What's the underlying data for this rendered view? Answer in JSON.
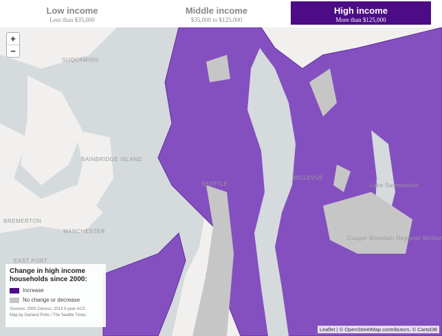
{
  "tabs": [
    {
      "title": "Low income",
      "subtitle": "Less than $35,000"
    },
    {
      "title": "Middle income",
      "subtitle": "$35,000 to $125,000"
    },
    {
      "title": "High income",
      "subtitle": "More than $125,000"
    }
  ],
  "zoom": {
    "in": "+",
    "out": "−"
  },
  "map": {
    "labels": [
      "SUQUAMISH",
      "BAINBRIDGE ISLAND",
      "BREMERTON",
      "MANCHESTER",
      "SEATTLE",
      "BELLEVUE",
      "Lake Sammamish",
      "Cougar Mountain Regional Wildland Park",
      "EAST PORT"
    ]
  },
  "legend": {
    "title": "Change in high income households since 2000:",
    "items": [
      "Increase",
      "No change or decrease"
    ],
    "sources": "Sources: 2000 Census; 2013 5-year ACS",
    "credit": "Map by Garland Potts / The Seattle Times"
  },
  "attribution": "Leaflet | © OpenStreetMap contributors, © CartoDB"
}
